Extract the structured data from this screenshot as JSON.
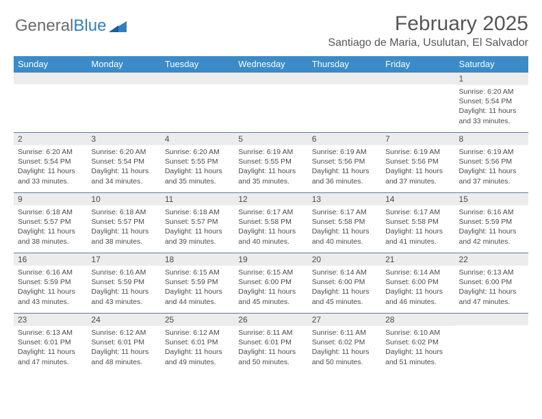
{
  "logo": {
    "part1": "General",
    "part2": "Blue"
  },
  "title": "February 2025",
  "location": "Santiago de Maria, Usulutan, El Salvador",
  "header_bg": "#3b8bc8",
  "daynum_bg": "#ececec",
  "border_color": "#5a7a99",
  "weekdays": [
    "Sunday",
    "Monday",
    "Tuesday",
    "Wednesday",
    "Thursday",
    "Friday",
    "Saturday"
  ],
  "weeks": [
    [
      {
        "n": "",
        "t": ""
      },
      {
        "n": "",
        "t": ""
      },
      {
        "n": "",
        "t": ""
      },
      {
        "n": "",
        "t": ""
      },
      {
        "n": "",
        "t": ""
      },
      {
        "n": "",
        "t": ""
      },
      {
        "n": "1",
        "t": "Sunrise: 6:20 AM\nSunset: 5:54 PM\nDaylight: 11 hours and 33 minutes."
      }
    ],
    [
      {
        "n": "2",
        "t": "Sunrise: 6:20 AM\nSunset: 5:54 PM\nDaylight: 11 hours and 33 minutes."
      },
      {
        "n": "3",
        "t": "Sunrise: 6:20 AM\nSunset: 5:54 PM\nDaylight: 11 hours and 34 minutes."
      },
      {
        "n": "4",
        "t": "Sunrise: 6:20 AM\nSunset: 5:55 PM\nDaylight: 11 hours and 35 minutes."
      },
      {
        "n": "5",
        "t": "Sunrise: 6:19 AM\nSunset: 5:55 PM\nDaylight: 11 hours and 35 minutes."
      },
      {
        "n": "6",
        "t": "Sunrise: 6:19 AM\nSunset: 5:56 PM\nDaylight: 11 hours and 36 minutes."
      },
      {
        "n": "7",
        "t": "Sunrise: 6:19 AM\nSunset: 5:56 PM\nDaylight: 11 hours and 37 minutes."
      },
      {
        "n": "8",
        "t": "Sunrise: 6:19 AM\nSunset: 5:56 PM\nDaylight: 11 hours and 37 minutes."
      }
    ],
    [
      {
        "n": "9",
        "t": "Sunrise: 6:18 AM\nSunset: 5:57 PM\nDaylight: 11 hours and 38 minutes."
      },
      {
        "n": "10",
        "t": "Sunrise: 6:18 AM\nSunset: 5:57 PM\nDaylight: 11 hours and 38 minutes."
      },
      {
        "n": "11",
        "t": "Sunrise: 6:18 AM\nSunset: 5:57 PM\nDaylight: 11 hours and 39 minutes."
      },
      {
        "n": "12",
        "t": "Sunrise: 6:17 AM\nSunset: 5:58 PM\nDaylight: 11 hours and 40 minutes."
      },
      {
        "n": "13",
        "t": "Sunrise: 6:17 AM\nSunset: 5:58 PM\nDaylight: 11 hours and 40 minutes."
      },
      {
        "n": "14",
        "t": "Sunrise: 6:17 AM\nSunset: 5:58 PM\nDaylight: 11 hours and 41 minutes."
      },
      {
        "n": "15",
        "t": "Sunrise: 6:16 AM\nSunset: 5:59 PM\nDaylight: 11 hours and 42 minutes."
      }
    ],
    [
      {
        "n": "16",
        "t": "Sunrise: 6:16 AM\nSunset: 5:59 PM\nDaylight: 11 hours and 43 minutes."
      },
      {
        "n": "17",
        "t": "Sunrise: 6:16 AM\nSunset: 5:59 PM\nDaylight: 11 hours and 43 minutes."
      },
      {
        "n": "18",
        "t": "Sunrise: 6:15 AM\nSunset: 5:59 PM\nDaylight: 11 hours and 44 minutes."
      },
      {
        "n": "19",
        "t": "Sunrise: 6:15 AM\nSunset: 6:00 PM\nDaylight: 11 hours and 45 minutes."
      },
      {
        "n": "20",
        "t": "Sunrise: 6:14 AM\nSunset: 6:00 PM\nDaylight: 11 hours and 45 minutes."
      },
      {
        "n": "21",
        "t": "Sunrise: 6:14 AM\nSunset: 6:00 PM\nDaylight: 11 hours and 46 minutes."
      },
      {
        "n": "22",
        "t": "Sunrise: 6:13 AM\nSunset: 6:00 PM\nDaylight: 11 hours and 47 minutes."
      }
    ],
    [
      {
        "n": "23",
        "t": "Sunrise: 6:13 AM\nSunset: 6:01 PM\nDaylight: 11 hours and 47 minutes."
      },
      {
        "n": "24",
        "t": "Sunrise: 6:12 AM\nSunset: 6:01 PM\nDaylight: 11 hours and 48 minutes."
      },
      {
        "n": "25",
        "t": "Sunrise: 6:12 AM\nSunset: 6:01 PM\nDaylight: 11 hours and 49 minutes."
      },
      {
        "n": "26",
        "t": "Sunrise: 6:11 AM\nSunset: 6:01 PM\nDaylight: 11 hours and 50 minutes."
      },
      {
        "n": "27",
        "t": "Sunrise: 6:11 AM\nSunset: 6:02 PM\nDaylight: 11 hours and 50 minutes."
      },
      {
        "n": "28",
        "t": "Sunrise: 6:10 AM\nSunset: 6:02 PM\nDaylight: 11 hours and 51 minutes."
      },
      {
        "n": "",
        "t": ""
      }
    ]
  ]
}
